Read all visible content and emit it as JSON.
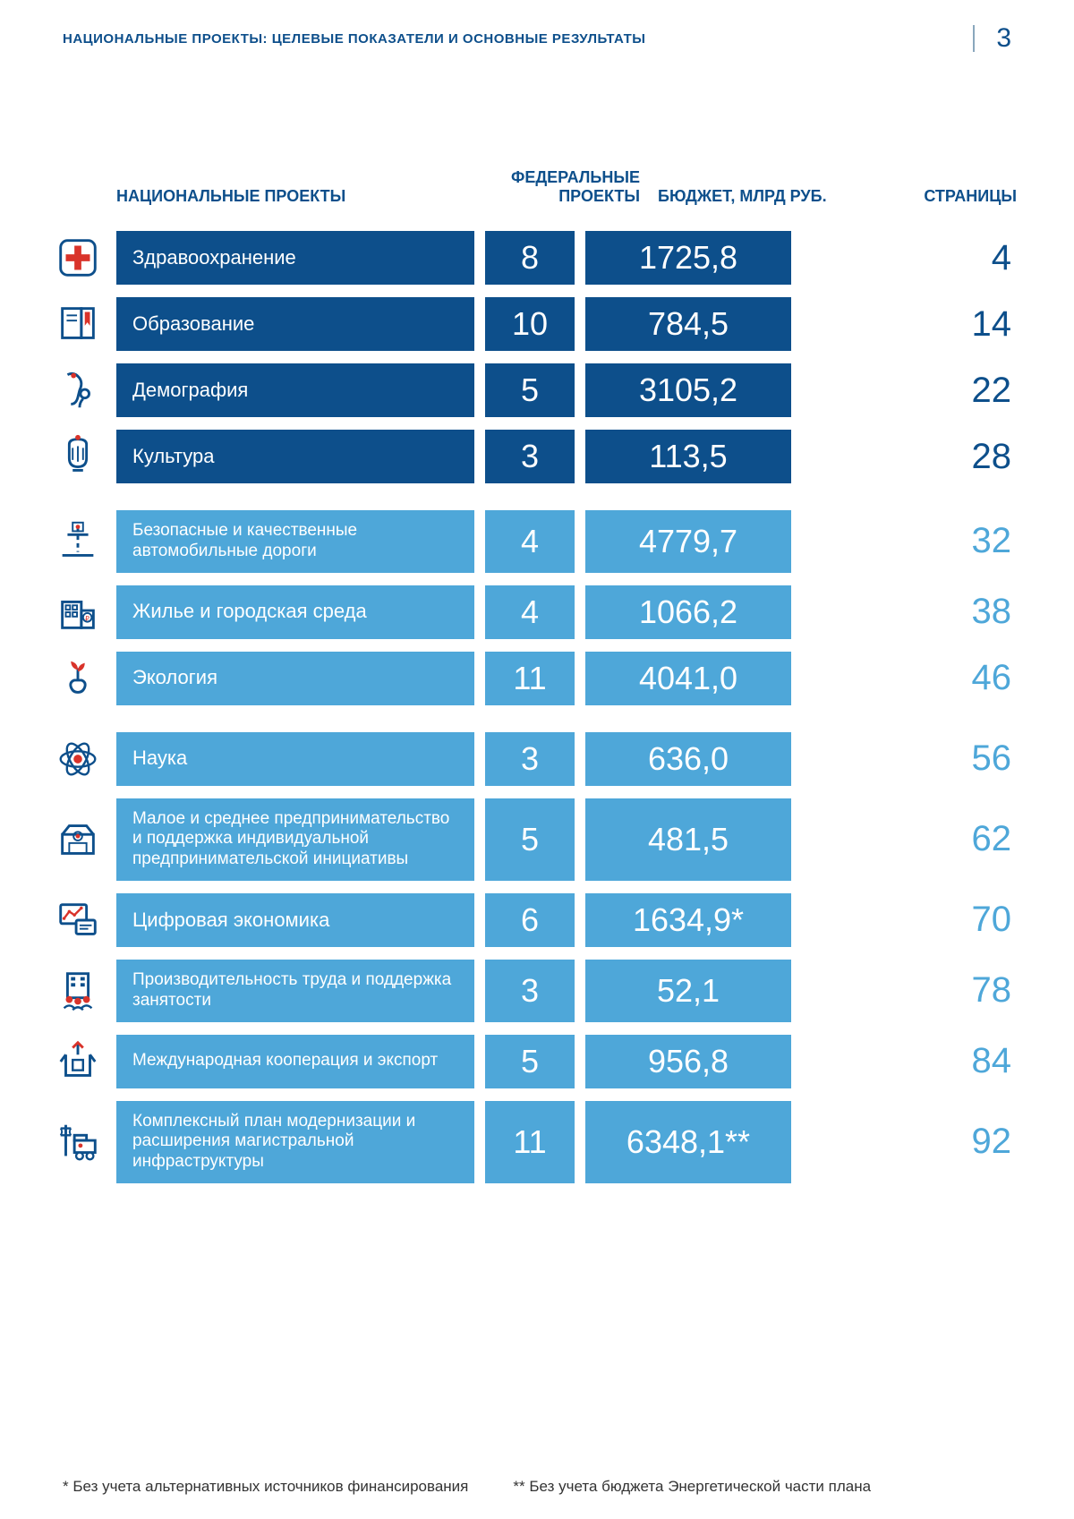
{
  "header": {
    "title": "НАЦИОНАЛЬНЫЕ ПРОЕКТЫ: ЦЕЛЕВЫЕ ПОКАЗАТЕЛИ И ОСНОВНЫЕ РЕЗУЛЬТАТЫ",
    "page": "3"
  },
  "columns": {
    "name": "НАЦИОНАЛЬНЫЕ ПРОЕКТЫ",
    "federal": "ФЕДЕРАЛЬНЫЕ ПРОЕКТЫ",
    "budget": "БЮДЖЕТ, МЛРД РУБ.",
    "pages": "СТРАНИЦЫ"
  },
  "colors": {
    "dark_bg": "#0d4f8b",
    "light_bg": "#4ea7d9",
    "dark_text": "#0d4f8b",
    "light_text": "#4ea7d9",
    "accent_red": "#d9332a",
    "white": "#ffffff"
  },
  "groups": [
    {
      "color": "dark",
      "rows": [
        {
          "icon": "health",
          "name": "Здравоохранение",
          "federal": "8",
          "budget": "1725,8",
          "page": "4"
        },
        {
          "icon": "education",
          "name": "Образование",
          "federal": "10",
          "budget": "784,5",
          "page": "14"
        },
        {
          "icon": "demography",
          "name": "Демография",
          "federal": "5",
          "budget": "3105,2",
          "page": "22"
        },
        {
          "icon": "culture",
          "name": "Культура",
          "federal": "3",
          "budget": "113,5",
          "page": "28"
        }
      ]
    },
    {
      "color": "light",
      "rows": [
        {
          "icon": "roads",
          "name": "Безопасные и качественные автомобильные дороги",
          "small": true,
          "federal": "4",
          "budget": "4779,7",
          "page": "32"
        },
        {
          "icon": "housing",
          "name": "Жилье и городская среда",
          "federal": "4",
          "budget": "1066,2",
          "page": "38"
        },
        {
          "icon": "ecology",
          "name": "Экология",
          "federal": "11",
          "budget": "4041,0",
          "page": "46"
        }
      ]
    },
    {
      "color": "light",
      "rows": [
        {
          "icon": "science",
          "name": "Наука",
          "federal": "3",
          "budget": "636,0",
          "page": "56"
        },
        {
          "icon": "business",
          "name": "Малое и среднее предпринимательство и поддержка индивидуальной предпринимательской инициативы",
          "small": true,
          "federal": "5",
          "budget": "481,5",
          "page": "62"
        },
        {
          "icon": "digital",
          "name": "Цифровая экономика",
          "federal": "6",
          "budget": "1634,9*",
          "page": "70"
        },
        {
          "icon": "labor",
          "name": "Производительность труда и поддержка занятости",
          "small": true,
          "federal": "3",
          "budget": "52,1",
          "page": "78"
        },
        {
          "icon": "export",
          "name": "Международная кооперация и экспорт",
          "small": true,
          "federal": "5",
          "budget": "956,8",
          "page": "84"
        },
        {
          "icon": "infra",
          "name": "Комплексный план модернизации и расширения магистральной инфраструктуры",
          "small": true,
          "federal": "11",
          "budget": "6348,1**",
          "page": "92"
        }
      ]
    }
  ],
  "footnotes": {
    "a": "* Без учета альтернативных источников финансирования",
    "b": "** Без учета бюджета Энергетической части плана"
  }
}
